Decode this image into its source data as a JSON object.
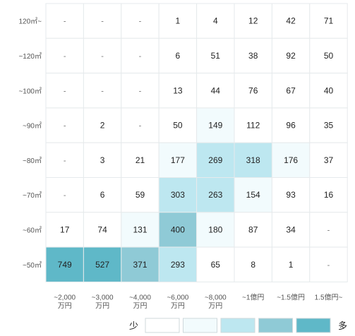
{
  "chart_data": {
    "type": "heatmap",
    "rows": [
      "120㎡~",
      "~120㎡",
      "~100㎡",
      "~90㎡",
      "~80㎡",
      "~70㎡",
      "~60㎡",
      "~50㎡"
    ],
    "columns": [
      [
        "~2,000",
        "万円"
      ],
      [
        "~3,000",
        "万円"
      ],
      [
        "~4,000",
        "万円"
      ],
      [
        "~6,000",
        "万円"
      ],
      [
        "~8,000",
        "万円"
      ],
      [
        "~1億円"
      ],
      [
        "~1.5億円"
      ],
      [
        "1.5億円~"
      ]
    ],
    "values": [
      [
        null,
        null,
        null,
        1,
        4,
        12,
        42,
        71
      ],
      [
        null,
        null,
        null,
        6,
        51,
        38,
        92,
        50
      ],
      [
        null,
        null,
        null,
        13,
        44,
        76,
        67,
        40
      ],
      [
        null,
        2,
        null,
        50,
        149,
        112,
        96,
        35
      ],
      [
        null,
        3,
        21,
        177,
        269,
        318,
        176,
        37
      ],
      [
        null,
        6,
        59,
        303,
        263,
        154,
        93,
        16
      ],
      [
        17,
        74,
        131,
        400,
        180,
        87,
        34,
        null
      ],
      [
        749,
        527,
        371,
        293,
        65,
        8,
        1,
        null
      ]
    ],
    "cell_levels": [
      [
        0,
        0,
        0,
        0,
        0,
        0,
        0,
        0
      ],
      [
        0,
        0,
        0,
        0,
        0,
        0,
        0,
        0
      ],
      [
        0,
        0,
        0,
        0,
        0,
        0,
        0,
        0
      ],
      [
        0,
        0,
        0,
        0,
        1,
        0,
        0,
        0
      ],
      [
        0,
        0,
        0,
        1,
        2,
        2,
        1,
        0
      ],
      [
        0,
        0,
        0,
        2,
        2,
        1,
        0,
        0
      ],
      [
        0,
        0,
        1,
        3,
        1,
        0,
        0,
        0
      ],
      [
        4,
        4,
        3,
        2,
        0,
        0,
        0,
        0
      ]
    ],
    "missing_label": "-",
    "legend": {
      "low_label": "少",
      "high_label": "多",
      "colors": [
        "#ffffff",
        "#f2fbfd",
        "#bde7f0",
        "#8fcad6",
        "#5fb8c8"
      ]
    },
    "grid_color": "#e6eaec"
  }
}
